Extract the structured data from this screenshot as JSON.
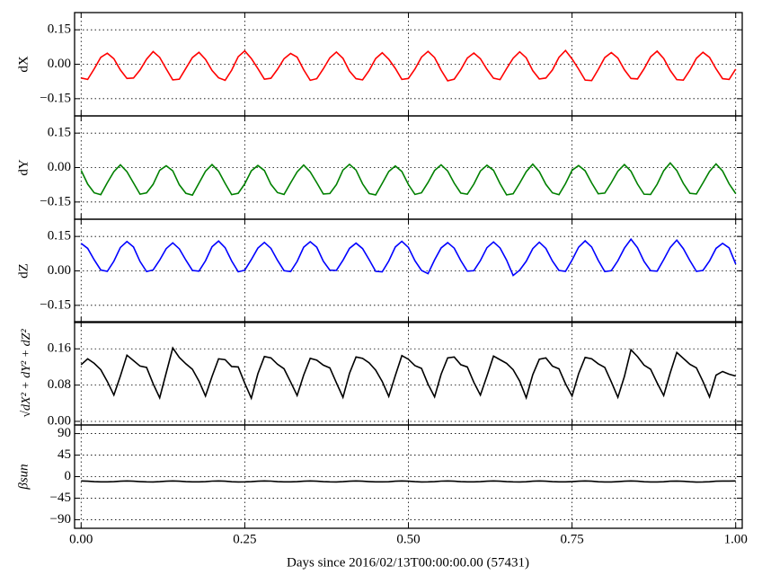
{
  "chart_data": {
    "type": "line",
    "grid": true,
    "xlabel": "Days since 2016/02/13T00:00:00.00 (57431)",
    "xlim": [
      -0.01,
      1.01
    ],
    "xticks": [
      {
        "value": 0,
        "label": "0.00"
      },
      {
        "value": 0.25,
        "label": "0.25"
      },
      {
        "value": 0.5,
        "label": "0.50"
      },
      {
        "value": 0.75,
        "label": "0.75"
      },
      {
        "value": 1,
        "label": "1.00"
      }
    ],
    "x": [
      0,
      0.01,
      0.02,
      0.03,
      0.04,
      0.05,
      0.06,
      0.07,
      0.08,
      0.09,
      0.1,
      0.11,
      0.12,
      0.13,
      0.14,
      0.15,
      0.16,
      0.17,
      0.18,
      0.19,
      0.2,
      0.21,
      0.22,
      0.23,
      0.24,
      0.25,
      0.26,
      0.27,
      0.28,
      0.29,
      0.3,
      0.31,
      0.32,
      0.33,
      0.34,
      0.35,
      0.36,
      0.37,
      0.38,
      0.39,
      0.4,
      0.41,
      0.42,
      0.43,
      0.44,
      0.45,
      0.46,
      0.47,
      0.48,
      0.49,
      0.5,
      0.51,
      0.52,
      0.53,
      0.54,
      0.55,
      0.56,
      0.57,
      0.58,
      0.59,
      0.6,
      0.61,
      0.62,
      0.63,
      0.64,
      0.65,
      0.66,
      0.67,
      0.68,
      0.69,
      0.7,
      0.71,
      0.72,
      0.73,
      0.74,
      0.75,
      0.76,
      0.77,
      0.78,
      0.79,
      0.8,
      0.81,
      0.82,
      0.83,
      0.84,
      0.85,
      0.86,
      0.87,
      0.88,
      0.89,
      0.9,
      0.91,
      0.92,
      0.93,
      0.94,
      0.95,
      0.96,
      0.97,
      0.98,
      0.99,
      1
    ],
    "panels": [
      {
        "ylabel": "dX",
        "ylim": [
          -0.225,
          0.225
        ],
        "yticks": [
          {
            "value": -0.15,
            "label": "−0.15"
          },
          {
            "value": 0,
            "label": "0.00"
          },
          {
            "value": 0.15,
            "label": "0.15"
          }
        ],
        "series": [
          {
            "color": "#ff0000",
            "values": [
              -0.06,
              -0.066,
              -0.02,
              0.03,
              0.048,
              0.024,
              -0.025,
              -0.062,
              -0.06,
              -0.025,
              0.022,
              0.055,
              0.03,
              -0.02,
              -0.068,
              -0.065,
              -0.018,
              0.029,
              0.052,
              0.021,
              -0.027,
              -0.059,
              -0.07,
              -0.026,
              0.033,
              0.058,
              0.025,
              -0.019,
              -0.065,
              -0.061,
              -0.022,
              0.024,
              0.047,
              0.031,
              -0.024,
              -0.07,
              -0.063,
              -0.02,
              0.028,
              0.053,
              0.026,
              -0.03,
              -0.063,
              -0.068,
              -0.027,
              0.025,
              0.05,
              0.022,
              -0.018,
              -0.066,
              -0.062,
              -0.021,
              0.031,
              0.056,
              0.029,
              -0.026,
              -0.072,
              -0.065,
              -0.024,
              0.027,
              0.049,
              0.024,
              -0.022,
              -0.061,
              -0.067,
              -0.019,
              0.026,
              0.054,
              0.028,
              -0.028,
              -0.064,
              -0.06,
              -0.025,
              0.03,
              0.06,
              0.023,
              -0.021,
              -0.069,
              -0.071,
              -0.023,
              0.029,
              0.051,
              0.027,
              -0.024,
              -0.062,
              -0.064,
              -0.02,
              0.032,
              0.057,
              0.025,
              -0.027,
              -0.067,
              -0.069,
              -0.026,
              0.026,
              0.052,
              0.03,
              -0.02,
              -0.063,
              -0.066,
              -0.021
            ]
          }
        ]
      },
      {
        "ylabel": "dY",
        "ylim": [
          -0.225,
          0.225
        ],
        "yticks": [
          {
            "value": -0.15,
            "label": "−0.15"
          },
          {
            "value": 0,
            "label": "0.00"
          },
          {
            "value": 0.15,
            "label": "0.15"
          }
        ],
        "series": [
          {
            "color": "#008000",
            "values": [
              -0.012,
              -0.072,
              -0.11,
              -0.118,
              -0.066,
              -0.018,
              0.012,
              -0.018,
              -0.067,
              -0.116,
              -0.11,
              -0.073,
              -0.012,
              0.008,
              -0.014,
              -0.075,
              -0.112,
              -0.12,
              -0.068,
              -0.016,
              0.013,
              -0.016,
              -0.069,
              -0.118,
              -0.112,
              -0.071,
              -0.014,
              0.009,
              -0.013,
              -0.073,
              -0.109,
              -0.117,
              -0.067,
              -0.019,
              0.011,
              -0.019,
              -0.066,
              -0.115,
              -0.113,
              -0.074,
              -0.011,
              0.014,
              -0.011,
              -0.071,
              -0.113,
              -0.119,
              -0.069,
              -0.017,
              0.007,
              -0.017,
              -0.074,
              -0.117,
              -0.11,
              -0.065,
              -0.013,
              0.012,
              -0.015,
              -0.068,
              -0.111,
              -0.116,
              -0.072,
              -0.015,
              0.01,
              -0.012,
              -0.07,
              -0.119,
              -0.114,
              -0.068,
              -0.018,
              0.015,
              -0.018,
              -0.073,
              -0.11,
              -0.118,
              -0.07,
              -0.012,
              0.009,
              -0.014,
              -0.067,
              -0.114,
              -0.111,
              -0.066,
              -0.016,
              0.013,
              -0.016,
              -0.072,
              -0.116,
              -0.117,
              -0.073,
              -0.014,
              0.02,
              -0.013,
              -0.069,
              -0.112,
              -0.115,
              -0.067,
              -0.017,
              0.016,
              -0.015,
              -0.071,
              -0.113
            ]
          }
        ]
      },
      {
        "ylabel": "dZ",
        "ylim": [
          -0.225,
          0.225
        ],
        "yticks": [
          {
            "value": -0.15,
            "label": "−0.15"
          },
          {
            "value": 0,
            "label": "0.00"
          },
          {
            "value": 0.15,
            "label": "0.15"
          }
        ],
        "series": [
          {
            "color": "#0000ff",
            "values": [
              0.12,
              0.098,
              0.048,
              0.004,
              -0.002,
              0.042,
              0.102,
              0.128,
              0.104,
              0.041,
              -0.003,
              0.004,
              0.047,
              0.097,
              0.122,
              0.096,
              0.047,
              0.002,
              -0.001,
              0.044,
              0.105,
              0.13,
              0.101,
              0.043,
              -0.004,
              0.003,
              0.049,
              0.099,
              0.124,
              0.098,
              0.046,
              0.001,
              -0.003,
              0.041,
              0.103,
              0.127,
              0.103,
              0.042,
              0.003,
              0.002,
              0.046,
              0.098,
              0.121,
              0.097,
              0.049,
              -0.002,
              -0.004,
              0.043,
              0.104,
              0.129,
              0.102,
              0.044,
              0.002,
              -0.012,
              0.048,
              0.1,
              0.123,
              0.099,
              0.045,
              -0.001,
              0.001,
              0.045,
              0.101,
              0.126,
              0.1,
              0.047,
              -0.02,
              0.003,
              0.042,
              0.097,
              0.125,
              0.098,
              0.043,
              0.002,
              -0.002,
              0.047,
              0.103,
              0.131,
              0.104,
              0.046,
              -0.003,
              0.001,
              0.044,
              0.099,
              0.138,
              0.101,
              0.041,
              0.001,
              -0.001,
              0.049,
              0.102,
              0.134,
              0.097,
              0.045,
              -0.002,
              0.002,
              0.043,
              0.098,
              0.12,
              0.1,
              0.03
            ]
          }
        ]
      },
      {
        "ylabel": "√dX² + dY² + dZ²",
        "ylim": [
          -0.008,
          0.22
        ],
        "yticks": [
          {
            "value": 0,
            "label": "0.00"
          },
          {
            "value": 0.08,
            "label": "0.08"
          },
          {
            "value": 0.16,
            "label": "0.16"
          }
        ],
        "series": [
          {
            "color": "#000000",
            "values": [
              0.125,
              0.138,
              0.128,
              0.114,
              0.088,
              0.058,
              0.1,
              0.146,
              0.134,
              0.122,
              0.119,
              0.083,
              0.052,
              0.107,
              0.162,
              0.141,
              0.127,
              0.115,
              0.089,
              0.056,
              0.099,
              0.138,
              0.136,
              0.121,
              0.12,
              0.084,
              0.051,
              0.105,
              0.143,
              0.14,
              0.126,
              0.116,
              0.087,
              0.057,
              0.102,
              0.139,
              0.135,
              0.124,
              0.118,
              0.085,
              0.053,
              0.106,
              0.142,
              0.139,
              0.129,
              0.113,
              0.088,
              0.055,
              0.101,
              0.145,
              0.137,
              0.123,
              0.117,
              0.082,
              0.054,
              0.104,
              0.14,
              0.142,
              0.125,
              0.12,
              0.086,
              0.058,
              0.1,
              0.144,
              0.136,
              0.128,
              0.114,
              0.089,
              0.052,
              0.103,
              0.137,
              0.14,
              0.122,
              0.116,
              0.083,
              0.056,
              0.105,
              0.141,
              0.138,
              0.127,
              0.119,
              0.087,
              0.053,
              0.099,
              0.158,
              0.143,
              0.124,
              0.115,
              0.085,
              0.057,
              0.107,
              0.152,
              0.139,
              0.126,
              0.118,
              0.088,
              0.054,
              0.102,
              0.11,
              0.104,
              0.1
            ]
          }
        ]
      },
      {
        "ylabel": "βsun",
        "ylim": [
          -108,
          108
        ],
        "yticks": [
          {
            "value": -90,
            "label": "−90"
          },
          {
            "value": -45,
            "label": "−45"
          },
          0,
          45,
          90
        ],
        "series": [
          {
            "color": "#000000",
            "values": [
              -9,
              -9.5,
              -10.5,
              -11,
              -11,
              -10.5,
              -9.5,
              -9,
              -9.6,
              -10.4,
              -11,
              -11.1,
              -10.5,
              -9.5,
              -9.1,
              -9.5,
              -10.5,
              -11,
              -11,
              -10.4,
              -9.4,
              -9,
              -9.5,
              -10.6,
              -11.1,
              -11,
              -10.5,
              -9.5,
              -9,
              -9.4,
              -10.5,
              -11,
              -11,
              -10.5,
              -9.6,
              -9.1,
              -9.5,
              -10.5,
              -11,
              -11.1,
              -10.5,
              -9.5,
              -9,
              -9.5,
              -10.4,
              -11,
              -11,
              -10.6,
              -9.5,
              -9,
              -9.5,
              -10.5,
              -11.1,
              -11,
              -10.5,
              -9.4,
              -9,
              -9.6,
              -10.5,
              -11,
              -11,
              -10.5,
              -9.5,
              -9.1,
              -9.5,
              -10.5,
              -11,
              -11.2,
              -10.6,
              -9.5,
              -9,
              -9.5,
              -10.5,
              -11,
              -11,
              -10.5,
              -9.5,
              -9,
              -9.6,
              -10.6,
              -11.2,
              -11.1,
              -10.5,
              -9.6,
              -9.1,
              -9.6,
              -10.6,
              -11.2,
              -11.2,
              -10.6,
              -9.6,
              -9.2,
              -9.7,
              -10.7,
              -11.3,
              -11.2,
              -10.6,
              -9.6,
              -9.3,
              -9.2,
              -9.1
            ]
          }
        ]
      }
    ]
  }
}
